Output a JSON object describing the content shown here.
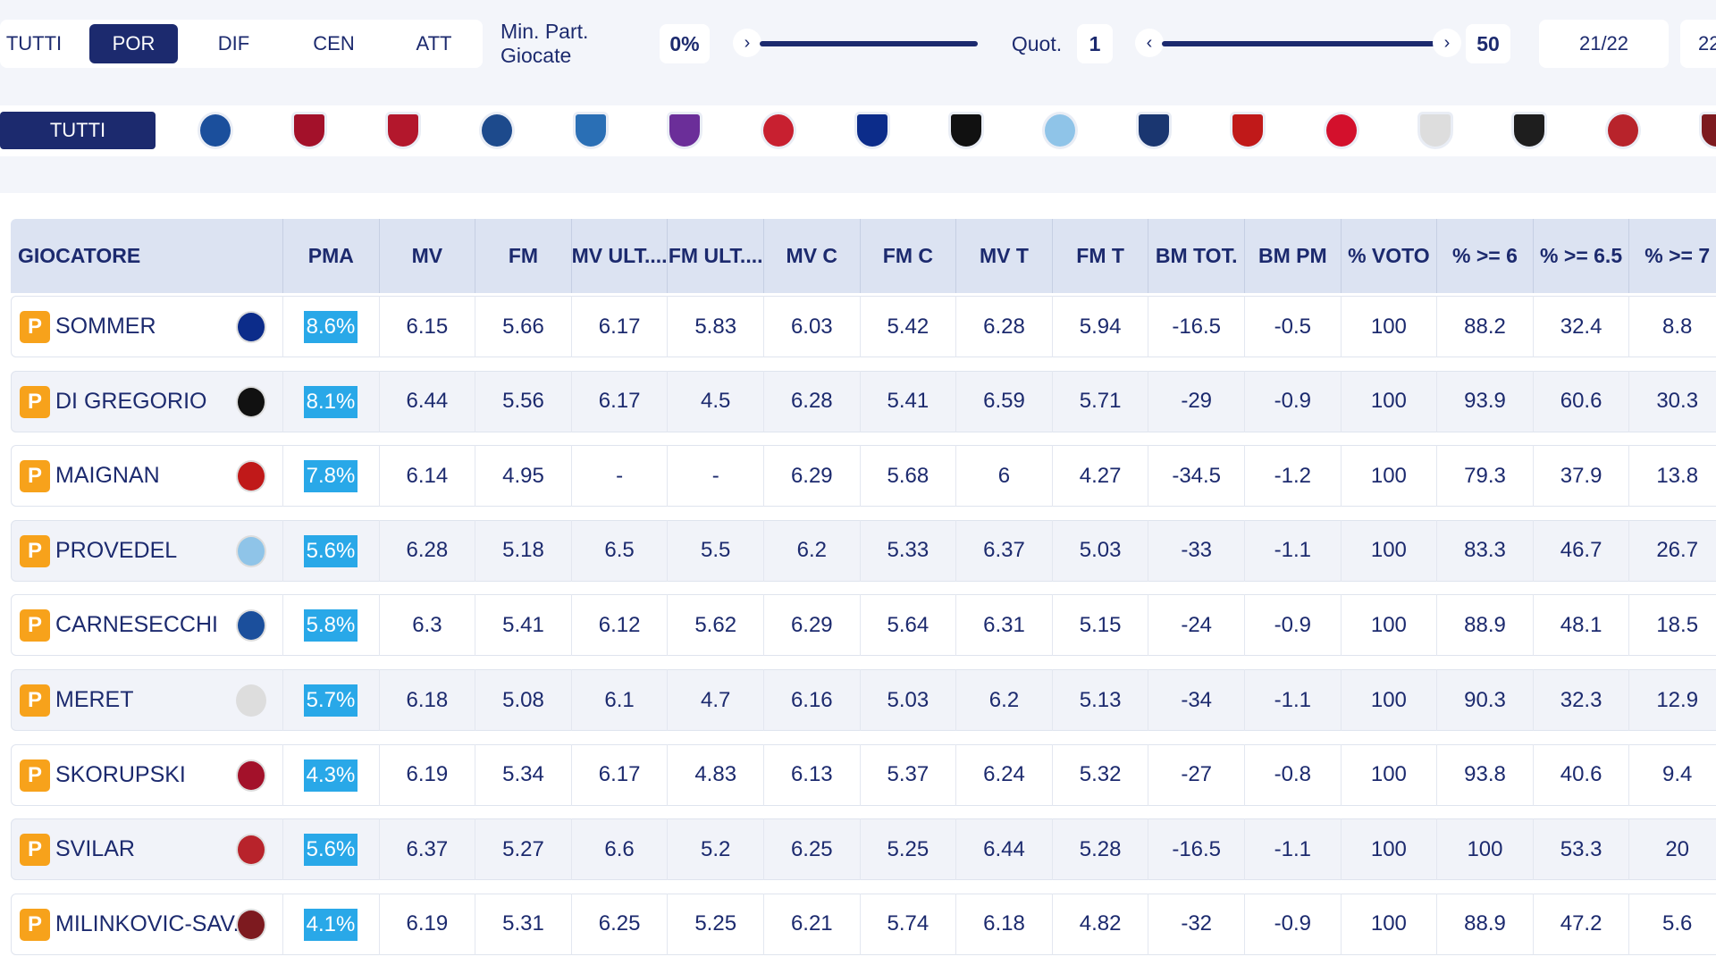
{
  "filters": {
    "roles": [
      "TUTTI",
      "POR",
      "DIF",
      "CEN",
      "ATT"
    ],
    "active_role": "POR",
    "min_label": "Min. Part. Giocate",
    "min_value": "0%",
    "quot_label": "Quot.",
    "quot_min": "1",
    "quot_max": "50",
    "seasons": [
      "21/22",
      "22"
    ]
  },
  "teams": {
    "all_label": "TUTTI"
  },
  "table": {
    "headers": [
      "GIOCATORE",
      "PMA",
      "MV",
      "FM",
      "MV ULT....",
      "FM ULT....",
      "MV C",
      "FM C",
      "MV T",
      "FM T",
      "BM TOT.",
      "BM PM",
      "% VOTO",
      "% >= 6",
      "% >= 6.5",
      "% >= 7"
    ],
    "rows": [
      [
        "P",
        "SOMMER",
        "8.6%",
        "6.15",
        "5.66",
        "6.17",
        "5.83",
        "6.03",
        "5.42",
        "6.28",
        "5.94",
        "-16.5",
        "-0.5",
        "100",
        "88.2",
        "32.4",
        "8.8"
      ],
      [
        "P",
        "DI GREGORIO",
        "8.1%",
        "6.44",
        "5.56",
        "6.17",
        "4.5",
        "6.28",
        "5.41",
        "6.59",
        "5.71",
        "-29",
        "-0.9",
        "100",
        "93.9",
        "60.6",
        "30.3"
      ],
      [
        "P",
        "MAIGNAN",
        "7.8%",
        "6.14",
        "4.95",
        "-",
        "-",
        "6.29",
        "5.68",
        "6",
        "4.27",
        "-34.5",
        "-1.2",
        "100",
        "79.3",
        "37.9",
        "13.8"
      ],
      [
        "P",
        "PROVEDEL",
        "5.6%",
        "6.28",
        "5.18",
        "6.5",
        "5.5",
        "6.2",
        "5.33",
        "6.37",
        "5.03",
        "-33",
        "-1.1",
        "100",
        "83.3",
        "46.7",
        "26.7"
      ],
      [
        "P",
        "CARNESECCHI",
        "5.8%",
        "6.3",
        "5.41",
        "6.12",
        "5.62",
        "6.29",
        "5.64",
        "6.31",
        "5.15",
        "-24",
        "-0.9",
        "100",
        "88.9",
        "48.1",
        "18.5"
      ],
      [
        "P",
        "MERET",
        "5.7%",
        "6.18",
        "5.08",
        "6.1",
        "4.7",
        "6.16",
        "5.03",
        "6.2",
        "5.13",
        "-34",
        "-1.1",
        "100",
        "90.3",
        "32.3",
        "12.9"
      ],
      [
        "P",
        "SKORUPSKI",
        "4.3%",
        "6.19",
        "5.34",
        "6.17",
        "4.83",
        "6.13",
        "5.37",
        "6.24",
        "5.32",
        "-27",
        "-0.8",
        "100",
        "93.8",
        "40.6",
        "9.4"
      ],
      [
        "P",
        "SVILAR",
        "5.6%",
        "6.37",
        "5.27",
        "6.6",
        "5.2",
        "6.25",
        "5.25",
        "6.44",
        "5.28",
        "-16.5",
        "-1.1",
        "100",
        "100",
        "53.3",
        "20"
      ],
      [
        "P",
        "MILINKOVIC-SAV...",
        "4.1%",
        "6.19",
        "5.31",
        "6.25",
        "5.25",
        "6.21",
        "5.74",
        "6.18",
        "4.82",
        "-32",
        "-0.9",
        "100",
        "88.9",
        "47.2",
        "5.6"
      ]
    ]
  }
}
